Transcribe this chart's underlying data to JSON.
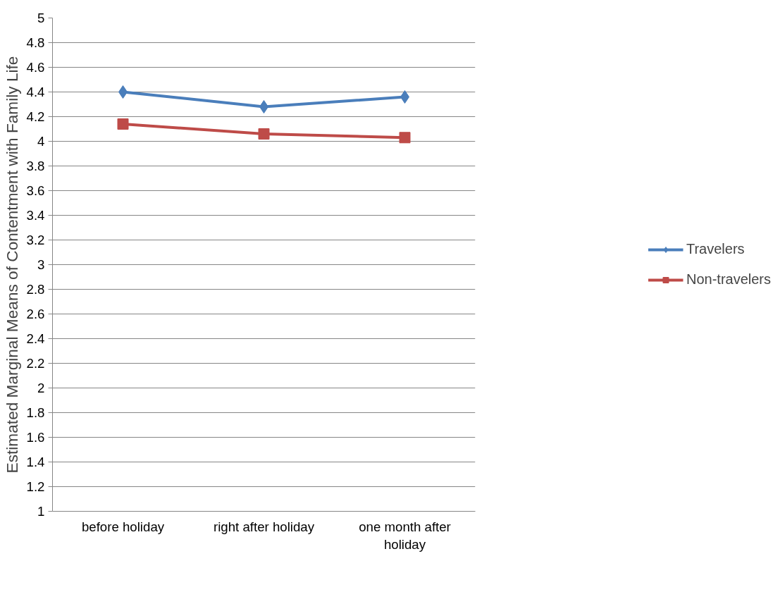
{
  "chart_data": {
    "type": "line",
    "ylabel": "Estimated Marginal Means of Contentment with Family Life",
    "categories": [
      "before holiday",
      "right after holiday",
      "one month after holiday"
    ],
    "series": [
      {
        "name": "Travelers",
        "color": "#4a7ebb",
        "marker": "diamond",
        "values": [
          4.4,
          4.28,
          4.36
        ]
      },
      {
        "name": "Non-travelers",
        "color": "#be4b48",
        "marker": "square",
        "values": [
          4.14,
          4.06,
          4.03
        ]
      }
    ],
    "ylim": [
      1,
      5
    ],
    "yticks": [
      1,
      1.2,
      1.4,
      1.6,
      1.8,
      2,
      2.2,
      2.4,
      2.6,
      2.8,
      3,
      3.2,
      3.4,
      3.6,
      3.8,
      4,
      4.2,
      4.4,
      4.6,
      4.8,
      5
    ],
    "grid": "y",
    "legend": "right",
    "line_style": "solid"
  }
}
